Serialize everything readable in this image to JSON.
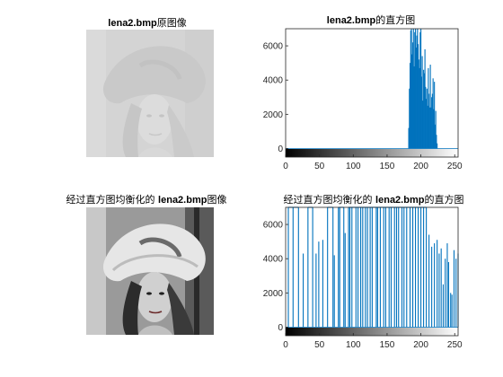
{
  "titles": {
    "orig_img": {
      "name": "lena2.bmp",
      "suffix": "原图像"
    },
    "orig_hist": {
      "name": "lena2.bmp",
      "suffix": "的直方图"
    },
    "eq_img": {
      "prefix": "经过直方图均衡化的",
      "name": "lena2.bmp",
      "suffix": "图像"
    },
    "eq_hist": {
      "prefix": "经过直方图均衡化的",
      "name": "lena2.bmp",
      "suffix": "的直方图"
    }
  },
  "colors": {
    "bar": "#0072BD",
    "axis": "#262626"
  },
  "chart_data": [
    {
      "type": "bar",
      "title": "lena2.bmp的直方图",
      "xlabel": "",
      "ylabel": "",
      "xlim": [
        0,
        255
      ],
      "ylim": [
        -500,
        7000
      ],
      "xticks": [
        0,
        50,
        100,
        150,
        200,
        250
      ],
      "yticks": [
        0,
        2000,
        4000,
        6000
      ],
      "colorbar": "gray",
      "x": [
        182,
        183,
        184,
        185,
        186,
        187,
        188,
        189,
        190,
        191,
        192,
        193,
        194,
        195,
        196,
        197,
        198,
        199,
        200,
        201,
        202,
        203,
        204,
        205,
        206,
        207,
        208,
        209,
        210,
        211,
        212,
        213,
        214,
        215,
        216,
        217,
        218,
        219,
        220,
        221,
        222,
        223,
        224
      ],
      "values": [
        1200,
        3500,
        5000,
        6900,
        7000,
        5500,
        6200,
        7000,
        4800,
        6800,
        7000,
        5900,
        6600,
        7000,
        6100,
        5200,
        4700,
        6800,
        7000,
        4200,
        5400,
        2800,
        4600,
        4400,
        5800,
        3600,
        2900,
        3500,
        2500,
        4700,
        3200,
        2400,
        4900,
        2400,
        3000,
        3200,
        4100,
        2300,
        3900,
        1400,
        2200,
        800,
        300
      ]
    },
    {
      "type": "bar",
      "title": "经过直方图均衡化的 lena2.bmp的直方图",
      "xlabel": "",
      "ylabel": "",
      "xlim": [
        0,
        255
      ],
      "ylim": [
        -500,
        7000
      ],
      "xticks": [
        0,
        50,
        100,
        150,
        200,
        250
      ],
      "yticks": [
        0,
        2000,
        4000,
        6000
      ],
      "colorbar": "gray",
      "x": [
        4,
        11,
        19,
        26,
        33,
        40,
        45,
        49,
        55,
        62,
        70,
        72,
        78,
        80,
        86,
        88,
        93,
        95,
        98,
        104,
        107,
        111,
        114,
        118,
        121,
        125,
        128,
        134,
        136,
        140,
        145,
        148,
        153,
        156,
        161,
        164,
        167,
        172,
        175,
        179,
        184,
        188,
        192,
        196,
        200,
        204,
        208,
        212,
        216,
        220,
        224,
        227,
        230,
        233,
        236,
        239,
        241,
        244,
        246,
        249,
        252,
        255
      ],
      "values": [
        7000,
        7000,
        7000,
        4300,
        7000,
        7000,
        4300,
        5000,
        5100,
        7000,
        7000,
        4200,
        7000,
        7000,
        7000,
        5500,
        7000,
        7000,
        7000,
        7000,
        7000,
        7000,
        7000,
        7000,
        7000,
        7000,
        7000,
        7000,
        7000,
        7000,
        7000,
        7000,
        7000,
        7000,
        7000,
        7000,
        7000,
        7000,
        7000,
        7000,
        7000,
        7000,
        7000,
        7000,
        7000,
        7000,
        7000,
        5400,
        4700,
        4900,
        5100,
        4300,
        4600,
        2500,
        4000,
        4900,
        3800,
        2000,
        1900,
        4500,
        4000,
        4300
      ]
    }
  ]
}
